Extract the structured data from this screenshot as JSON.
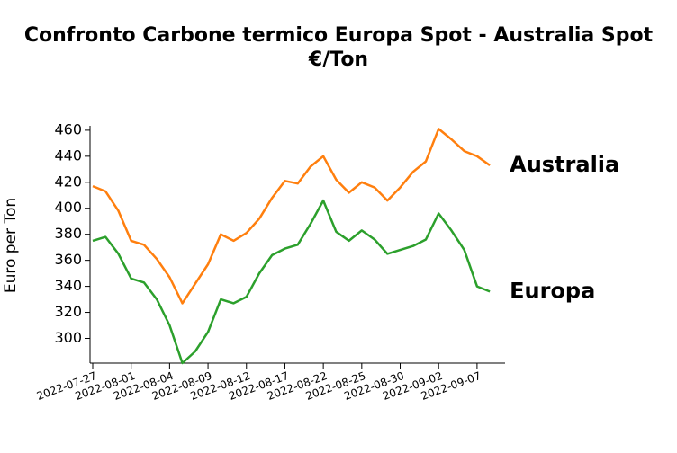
{
  "chart_data": {
    "type": "line",
    "title_lines": [
      "Confronto Carbone termico Europa Spot - Australia Spot",
      "€/Ton"
    ],
    "title_color": "#1aafcc",
    "y_label": "Euro per Ton",
    "categories": [
      "2022-07-27",
      null,
      null,
      "2022-08-01",
      null,
      null,
      "2022-08-04",
      null,
      null,
      "2022-08-09",
      null,
      null,
      "2022-08-12",
      null,
      null,
      "2022-08-17",
      null,
      null,
      "2022-08-22",
      null,
      null,
      "2022-08-25",
      null,
      null,
      "2022-08-30",
      null,
      null,
      "2022-09-02",
      null,
      null,
      "2022-09-07",
      null
    ],
    "series": [
      {
        "name": "Australia",
        "color": "#ff7f0e",
        "values": [
          417,
          413,
          398,
          375,
          372,
          361,
          347,
          327,
          342,
          357,
          380,
          375,
          381,
          392,
          408,
          421,
          419,
          432,
          440,
          422,
          412,
          420,
          416,
          406,
          416,
          428,
          436,
          461,
          453,
          444,
          440,
          433
        ]
      },
      {
        "name": "Europa",
        "color": "#2ca02c",
        "values": [
          375,
          378,
          365,
          346,
          343,
          330,
          310,
          281,
          290,
          305,
          330,
          327,
          332,
          350,
          364,
          369,
          372,
          388,
          406,
          382,
          375,
          383,
          376,
          365,
          368,
          371,
          376,
          396,
          383,
          368,
          340,
          336
        ]
      }
    ],
    "ylim": [
      281,
      462
    ],
    "yticks": [
      300,
      320,
      340,
      360,
      380,
      400,
      420,
      440,
      460
    ]
  }
}
